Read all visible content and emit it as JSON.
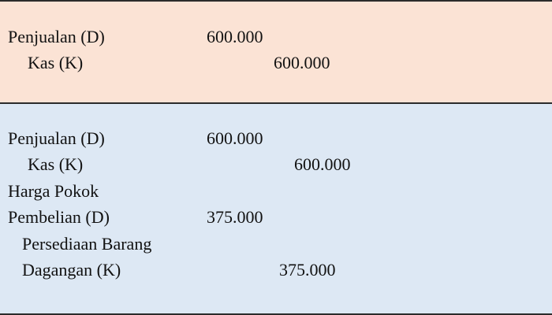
{
  "journal_1": {
    "debit_account": "Penjualan (D)",
    "debit_amount": "600.000",
    "credit_account": "Kas (K)",
    "credit_amount": "600.000"
  },
  "journal_2": {
    "entry_1": {
      "debit_account": "Penjualan (D)",
      "debit_amount": "600.000",
      "credit_account": "Kas (K)",
      "credit_amount": "600.000"
    },
    "entry_2": {
      "debit_account_line_1": "Harga Pokok",
      "debit_account_line_2": "Pembelian (D)",
      "debit_amount": "375.000",
      "credit_account_line_1": "Persediaan Barang",
      "credit_account_line_2": "Dagangan (K)",
      "credit_amount": "375.000"
    }
  }
}
